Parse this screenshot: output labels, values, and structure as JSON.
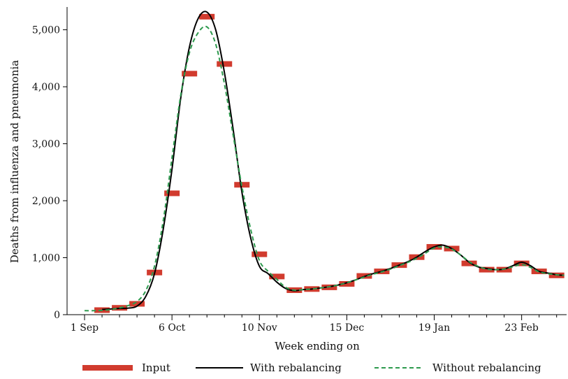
{
  "chart_data": {
    "type": "line",
    "title": "",
    "xlabel": "Week ending on",
    "ylabel": "Deaths from influenza and pneumonia",
    "y_ticks": [
      0,
      1000,
      2000,
      3000,
      4000,
      5000
    ],
    "y_tick_labels": [
      "0",
      "1,000",
      "2,000",
      "3,000",
      "4,000",
      "5,000"
    ],
    "x_ticks": [
      0,
      35,
      70,
      105,
      140,
      175
    ],
    "x_tick_labels": [
      "1 Sep",
      "6 Oct",
      "10 Nov",
      "15 Dec",
      "19 Jan",
      "23 Feb"
    ],
    "x_minor_ticks": [
      7,
      14,
      21,
      28,
      42,
      49,
      56,
      63,
      77,
      84,
      91,
      98,
      112,
      119,
      126,
      133,
      147,
      154,
      161,
      168,
      182,
      189
    ],
    "xlim": [
      -7,
      193
    ],
    "ylim": [
      0,
      5400
    ],
    "grid": false,
    "legend_position": "bottom",
    "series": [
      {
        "name": "Input",
        "style": "bars",
        "color": "#d13b2e",
        "x": [
          7,
          14,
          21,
          28,
          35,
          42,
          49,
          56,
          63,
          70,
          77,
          84,
          91,
          98,
          105,
          112,
          119,
          126,
          133,
          140,
          147,
          154,
          161,
          168,
          175,
          182,
          189
        ],
        "values": [
          80,
          120,
          190,
          740,
          2130,
          4230,
          5230,
          4400,
          2280,
          1060,
          670,
          430,
          450,
          480,
          540,
          680,
          760,
          870,
          1010,
          1190,
          1160,
          900,
          790,
          790,
          900,
          760,
          690
        ]
      },
      {
        "name": "With rebalancing",
        "style": "solid",
        "color": "#000000",
        "x": [
          7,
          10.5,
          14,
          17.5,
          21,
          24.5,
          28,
          31.5,
          35,
          38.5,
          42,
          45.5,
          49,
          52.5,
          56,
          59.5,
          63,
          66.5,
          70,
          73.5,
          77,
          80.5,
          84,
          87.5,
          91,
          94.5,
          98,
          101.5,
          105,
          108.5,
          112,
          115.5,
          119,
          122.5,
          126,
          129.5,
          133,
          136.5,
          140,
          143.5,
          147,
          150.5,
          154,
          157.5,
          161,
          164.5,
          168,
          171.5,
          175,
          178.5,
          182,
          185.5,
          189,
          192
        ],
        "values": [
          90,
          100,
          110,
          115,
          150,
          320,
          720,
          1500,
          2550,
          3800,
          4700,
          5200,
          5310,
          5000,
          4250,
          3250,
          2150,
          1350,
          850,
          720,
          570,
          460,
          420,
          440,
          450,
          470,
          490,
          520,
          560,
          610,
          670,
          720,
          760,
          810,
          870,
          930,
          1010,
          1110,
          1190,
          1220,
          1160,
          1050,
          920,
          840,
          810,
          790,
          800,
          860,
          920,
          860,
          760,
          730,
          700,
          690
        ]
      },
      {
        "name": "Without rebalancing",
        "style": "dashed",
        "color": "#2e9a4e",
        "x": [
          0,
          3.5,
          7,
          10.5,
          14,
          17.5,
          21,
          24.5,
          28,
          31.5,
          35,
          38.5,
          42,
          45.5,
          49,
          52.5,
          56,
          59.5,
          63,
          66.5,
          70,
          73.5,
          77,
          80.5,
          84,
          87.5,
          91,
          94.5,
          98,
          101.5,
          105,
          108.5,
          112,
          115.5,
          119,
          122.5,
          126,
          129.5,
          133,
          136.5,
          140,
          143.5,
          147,
          150.5,
          154,
          157.5,
          161,
          164.5,
          168,
          171.5,
          175,
          178.5,
          182,
          185.5,
          189,
          192
        ],
        "values": [
          70,
          70,
          75,
          90,
          120,
          160,
          230,
          420,
          850,
          1650,
          2750,
          3850,
          4600,
          4950,
          5050,
          4750,
          4050,
          3150,
          2250,
          1500,
          950,
          760,
          620,
          480,
          430,
          440,
          450,
          470,
          490,
          520,
          560,
          610,
          660,
          710,
          750,
          800,
          860,
          920,
          990,
          1080,
          1170,
          1190,
          1150,
          1050,
          930,
          850,
          800,
          790,
          800,
          840,
          880,
          830,
          750,
          720,
          700,
          690
        ]
      }
    ]
  }
}
